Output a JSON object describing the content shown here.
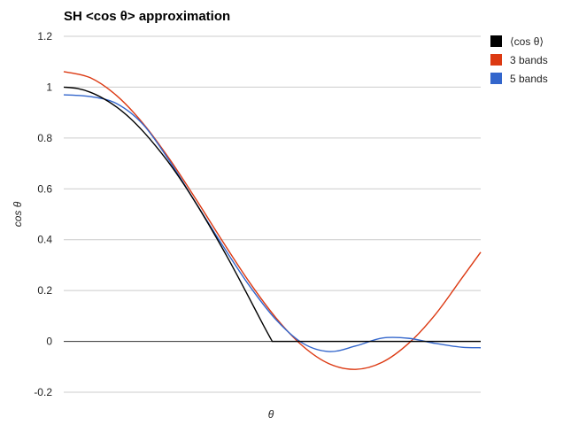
{
  "chart_data": {
    "type": "line",
    "title": "SH <cos θ> approximation",
    "xlabel": "θ",
    "ylabel": "cos θ",
    "xlim": [
      0,
      1.5708
    ],
    "ylim": [
      -0.2,
      1.2
    ],
    "yticks": [
      "1.2",
      "1",
      "0.8",
      "0.6",
      "0.4",
      "0.2",
      "0",
      "-0.2"
    ],
    "ytick_values": [
      1.2,
      1,
      0.8,
      0.6,
      0.4,
      0.2,
      0,
      -0.2
    ],
    "grid": true,
    "legend_position": "right",
    "series": [
      {
        "name": "⟨cos θ⟩",
        "color": "#000000",
        "x": [
          0,
          0.05,
          0.1,
          0.15,
          0.2,
          0.25,
          0.3,
          0.35,
          0.4,
          0.45,
          0.5,
          0.55,
          0.6,
          0.65,
          0.7,
          0.75,
          0.7854,
          0.8,
          0.9,
          1.0,
          1.1,
          1.2,
          1.3,
          1.4,
          1.5,
          1.5708
        ],
        "values": [
          1,
          0.995,
          0.98,
          0.955,
          0.921,
          0.878,
          0.825,
          0.764,
          0.697,
          0.622,
          0.54,
          0.453,
          0.362,
          0.267,
          0.168,
          0.068,
          0,
          0,
          0,
          0,
          0,
          0,
          0,
          0,
          0,
          0
        ]
      },
      {
        "name": "3 bands",
        "color": "#dc3912",
        "x": [
          0,
          0.1,
          0.2,
          0.3,
          0.4,
          0.5,
          0.6,
          0.7,
          0.8,
          0.9,
          1.0,
          1.1,
          1.2,
          1.3,
          1.4,
          1.5,
          1.5708
        ],
        "values": [
          1.061,
          1.037,
          0.966,
          0.856,
          0.715,
          0.556,
          0.391,
          0.232,
          0.092,
          -0.018,
          -0.088,
          -0.11,
          -0.082,
          -0.007,
          0.106,
          0.249,
          0.351
        ]
      },
      {
        "name": "5 bands",
        "color": "#3366cc",
        "x": [
          0,
          0.1,
          0.2,
          0.3,
          0.4,
          0.5,
          0.6,
          0.7,
          0.8,
          0.9,
          1.0,
          1.1,
          1.2,
          1.3,
          1.4,
          1.5,
          1.5708
        ],
        "values": [
          0.97,
          0.963,
          0.935,
          0.852,
          0.707,
          0.541,
          0.375,
          0.218,
          0.085,
          -0.007,
          -0.04,
          -0.018,
          0.013,
          0.012,
          -0.008,
          -0.023,
          -0.025
        ]
      }
    ]
  }
}
